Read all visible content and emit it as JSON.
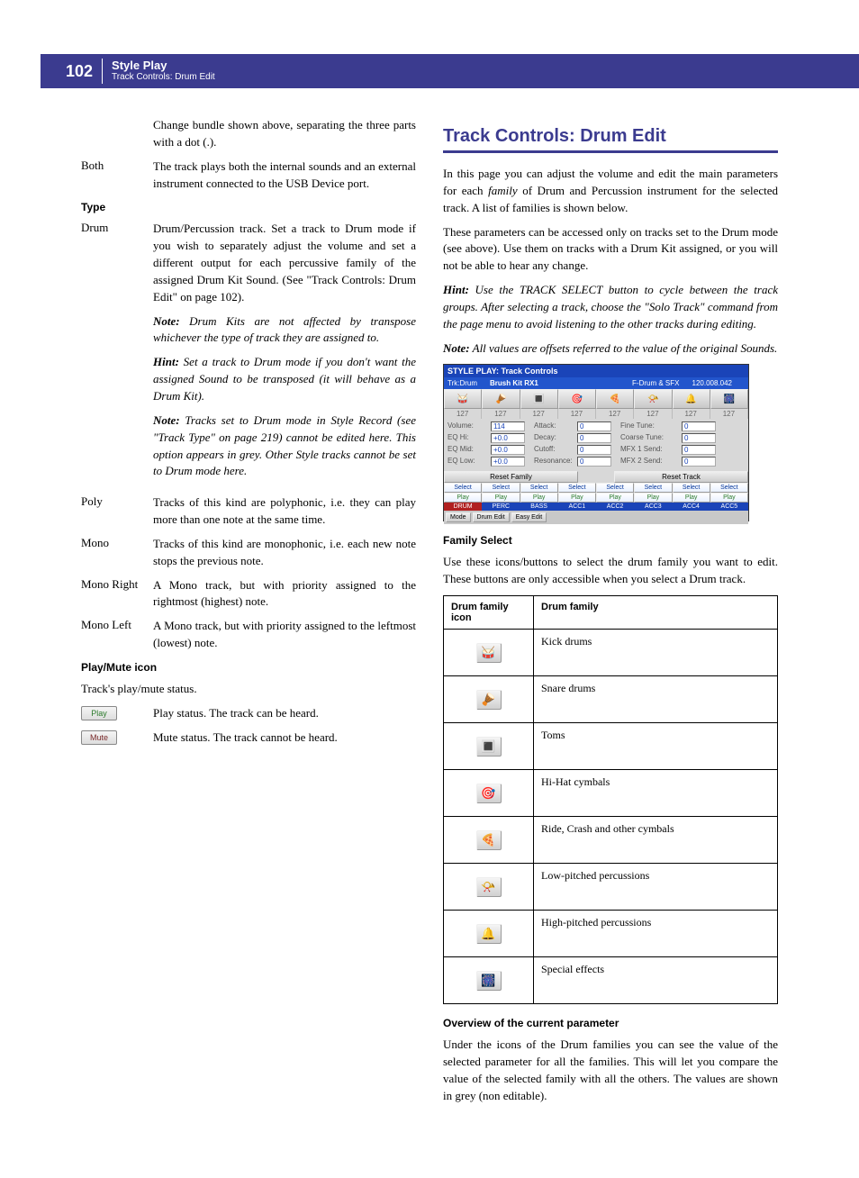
{
  "header": {
    "page_number": "102",
    "title": "Style Play",
    "subtitle": "Track Controls: Drum Edit",
    "bg_color": "#3b3b8f"
  },
  "left_col": {
    "intro_frag": "Change bundle shown above, separating the three parts with a dot (.).",
    "both_label": "Both",
    "both_text": "The track plays both the internal sounds and an external instrument connected to the USB Device port.",
    "type_head": "Type",
    "drum_label": "Drum",
    "drum_p1": "Drum/Percussion track. Set a track to Drum mode if you wish to separately adjust the volume and set a different output for each percussive family of the assigned Drum Kit Sound. (See \"Track Controls: Drum Edit\" on page 102).",
    "drum_note1": "Drum Kits are not affected by transpose whichever the type of track they are assigned to.",
    "drum_hint1": "Set a track to Drum mode if you don't want the assigned Sound to be transposed (it will behave as a Drum Kit).",
    "drum_note2": "Tracks set to Drum mode in Style Record (see \"Track Type\" on page 219) cannot be edited here. This option appears in grey. Other Style tracks cannot be set to Drum mode here.",
    "poly_label": "Poly",
    "poly_text": "Tracks of this kind are polyphonic, i.e. they can play more than one note at the same time.",
    "mono_label": "Mono",
    "mono_text": "Tracks of this kind are monophonic, i.e. each new note stops the previous note.",
    "monor_label": "Mono Right",
    "monor_text": "A Mono track, but with priority assigned to the rightmost (highest) note.",
    "monol_label": "Mono Left",
    "monol_text": "A Mono track, but with priority assigned to the leftmost (lowest) note.",
    "pm_head": "Play/Mute icon",
    "pm_intro": "Track's play/mute status.",
    "play_btn": "Play",
    "play_text": "Play status. The track can be heard.",
    "mute_btn": "Mute",
    "mute_text": "Mute status. The track cannot be heard."
  },
  "right_col": {
    "h1": "Track Controls: Drum Edit",
    "p1": "In this page you can adjust the volume and edit the main parameters for each family of Drum and Percussion instrument for the selected track. A list of families is shown below.",
    "p2": "These parameters can be accessed only on tracks set to the Drum mode (see above). Use them on tracks with a Drum Kit assigned, or you will not be able to hear any change.",
    "hint1": "Use the TRACK SELECT button to cycle between the track groups. After selecting a track, choose the \"Solo Track\" command from the page menu to avoid listening to the other tracks during editing.",
    "note1": "All values are offsets referred to the value of the original Sounds.",
    "screenshot": {
      "title": "STYLE PLAY: Track Controls",
      "trk": "Trk:Drum",
      "kit": "Brush Kit RX1",
      "fdrum": "F-Drum & SFX",
      "bank": "120.008.042",
      "icons": [
        "🥁",
        "🪘",
        "🔳",
        "🎯",
        "🍕",
        "📯",
        "🔔",
        "🎆"
      ],
      "vals": [
        "127",
        "127",
        "127",
        "127",
        "127",
        "127",
        "127",
        "127"
      ],
      "params": [
        {
          "l1": "Volume:",
          "v1": "114",
          "l2": "Attack:",
          "v2": "0",
          "l3": "Fine Tune:",
          "v3": "0"
        },
        {
          "l1": "EQ Hi:",
          "v1": "+0.0",
          "l2": "Decay:",
          "v2": "0",
          "l3": "Coarse Tune:",
          "v3": "0"
        },
        {
          "l1": "EQ Mid:",
          "v1": "+0.0",
          "l2": "Cutoff:",
          "v2": "0",
          "l3": "MFX 1 Send:",
          "v3": "0"
        },
        {
          "l1": "EQ Low:",
          "v1": "+0.0",
          "l2": "Resonance:",
          "v2": "0",
          "l3": "MFX 2 Send:",
          "v3": "0"
        }
      ],
      "reset_family": "Reset Family",
      "reset_track": "Reset Track",
      "select_label": "Select",
      "play_label": "Play",
      "tracks": [
        "DRUM",
        "PERC",
        "BASS",
        "ACC1",
        "ACC2",
        "ACC3",
        "ACC4",
        "ACC5"
      ],
      "bottom": [
        "Mode",
        "Drum Edit",
        "Easy Edit"
      ]
    },
    "family_head": "Family Select",
    "family_p": "Use these icons/buttons to select the drum family you want to edit. These buttons are only accessible when you select a Drum track.",
    "table": {
      "col1": "Drum family icon",
      "col2": "Drum family",
      "rows": [
        {
          "icon": "🥁",
          "name": "Kick drums"
        },
        {
          "icon": "🪘",
          "name": "Snare drums"
        },
        {
          "icon": "🔳",
          "name": "Toms"
        },
        {
          "icon": "🎯",
          "name": "Hi-Hat cymbals"
        },
        {
          "icon": "🍕",
          "name": "Ride, Crash and other cymbals"
        },
        {
          "icon": "📯",
          "name": "Low-pitched percussions"
        },
        {
          "icon": "🔔",
          "name": "High-pitched percussions"
        },
        {
          "icon": "🎆",
          "name": "Special effects"
        }
      ]
    },
    "overview_head": "Overview of the current parameter",
    "overview_p": "Under the icons of the Drum families you can see the value of the selected parameter for all the families. This will let you compare the value of the selected family with all the others. The values are shown in grey (non editable)."
  },
  "labels": {
    "note": "Note:",
    "hint": "Hint:"
  }
}
